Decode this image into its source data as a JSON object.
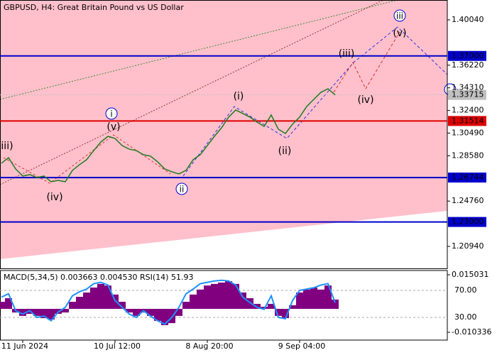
{
  "chart_data": [
    {
      "type": "line",
      "title": "GBPUSD, H4:  Great Britain Pound vs US Dollar",
      "color": "#1f7a1f",
      "categories": [
        null,
        null,
        null,
        "11 Jun 2024",
        null,
        null,
        null,
        null,
        null,
        null,
        null,
        null,
        null,
        null,
        null,
        null,
        "10 Jul 12:00",
        null,
        null,
        null,
        null,
        null,
        null,
        null,
        null,
        null,
        null,
        null,
        null,
        "8 Aug 20:00",
        null,
        null,
        null,
        null,
        null,
        null,
        null,
        null,
        null,
        null,
        null,
        null,
        "9 Sep 04:00",
        null,
        null,
        null,
        null,
        null
      ],
      "values": [
        1.2795,
        1.2842,
        1.2747,
        1.2687,
        1.2699,
        1.2675,
        1.2687,
        1.2639,
        1.2651,
        1.2639,
        1.2735,
        1.2783,
        1.2825,
        1.2902,
        1.2974,
        1.3022,
        1.3004,
        1.2944,
        1.2914,
        1.2902,
        1.2867,
        1.2855,
        1.2807,
        1.2747,
        1.2723,
        1.2705,
        1.2735,
        1.2825,
        1.2867,
        1.2944,
        1.3022,
        1.3094,
        1.3184,
        1.3244,
        1.3214,
        1.3184,
        1.3142,
        1.3106,
        1.3202,
        1.3082,
        1.3046,
        1.3124,
        1.3184,
        1.3274,
        1.3334,
        1.3393,
        1.3423,
        1.33715
      ],
      "ylim": [
        1.19085,
        1.41716
      ],
      "yticks": [
        {
          "value": 1.4004,
          "label": "1.40040"
        },
        {
          "value": 1.3622,
          "label": "1.36220"
        },
        {
          "value": 1.3431,
          "label": "1.34310"
        },
        {
          "value": 1.324,
          "label": "1.32400"
        },
        {
          "value": 1.3049,
          "label": "1.30490"
        },
        {
          "value": 1.2858,
          "label": "1.28580"
        },
        {
          "value": 1.2476,
          "label": "1.24760"
        },
        {
          "value": 1.2094,
          "label": "1.20940"
        }
      ],
      "levels": [
        {
          "value": 1.37,
          "label": "1.37000",
          "color": "#0000cd"
        },
        {
          "value": 1.31514,
          "label": "1.31514",
          "color": "#dc0000"
        },
        {
          "value": 1.26744,
          "label": "1.26744",
          "color": "#0000cd"
        },
        {
          "value": 1.23,
          "label": "1.23000",
          "color": "#0000cd"
        },
        {
          "value": 1.33715,
          "label": "1.33715",
          "color": "#c0c0c0"
        }
      ],
      "annotations": [
        {
          "text": "iii)",
          "color": "#c00000",
          "circled": false
        },
        {
          "text": "(iv)",
          "color": "#c00000",
          "circled": false
        },
        {
          "text": "(v)",
          "color": "#c00000",
          "circled": false
        },
        {
          "text": "i",
          "color": "#0000cd",
          "circled": true
        },
        {
          "text": "ii",
          "color": "#0000cd",
          "circled": true
        },
        {
          "text": "(i)",
          "color": "#c00000",
          "circled": false
        },
        {
          "text": "(ii)",
          "color": "#c00000",
          "circled": false
        },
        {
          "text": "(iii)",
          "color": "#c00000",
          "circled": false
        },
        {
          "text": "(iv)",
          "color": "#c00000",
          "circled": false
        },
        {
          "text": "(v)",
          "color": "#c00000",
          "circled": false
        },
        {
          "text": "iii",
          "color": "#0000cd",
          "circled": true
        }
      ]
    },
    {
      "type": "bar",
      "title": "MACD(5,34,5) 0.003663 0.004530 RSI(14) 51.93",
      "series": [
        {
          "color": "#800080",
          "values": [
            0.0031,
            0.0047,
            -0.0016,
            -0.0031,
            -0.0022,
            -0.0031,
            -0.0041,
            -0.0047,
            -0.0022,
            -0.0016,
            0.0031,
            0.0053,
            0.0072,
            0.0094,
            0.011,
            0.0103,
            0.0063,
            0.0031,
            -0.0016,
            -0.0031,
            -0.0016,
            -0.0031,
            -0.0053,
            -0.0072,
            -0.0063,
            -0.0031,
            0.0031,
            0.0063,
            0.0085,
            0.0103,
            0.011,
            0.0116,
            0.0122,
            0.011,
            0.0072,
            0.0047,
            0.0022,
            0.0009,
            0.0022,
            -0.0031,
            -0.0041,
            0.0016,
            0.0072,
            0.0085,
            0.0094,
            0.0085,
            0.0103,
            0.0041
          ]
        },
        {
          "color": "#1e90ff",
          "axis": "y2",
          "values": [
            60,
            65,
            40,
            35,
            40,
            30,
            32,
            25,
            38,
            45,
            62,
            68,
            72,
            80,
            82,
            78,
            55,
            45,
            35,
            30,
            40,
            32,
            25,
            20,
            30,
            45,
            65,
            72,
            80,
            82,
            84,
            85,
            84,
            78,
            60,
            52,
            45,
            42,
            62,
            30,
            28,
            55,
            70,
            72,
            74,
            78,
            80,
            52
          ]
        }
      ],
      "ylim": [
        -0.014094,
        0.01691
      ],
      "yticks": [
        0.015031,
        -0.010336
      ],
      "y2lim": [
        -4.7,
        99.5
      ],
      "y2ticks": [
        {
          "value": 70,
          "label": "70.00"
        },
        {
          "value": 30,
          "label": "30.00"
        }
      ]
    }
  ]
}
